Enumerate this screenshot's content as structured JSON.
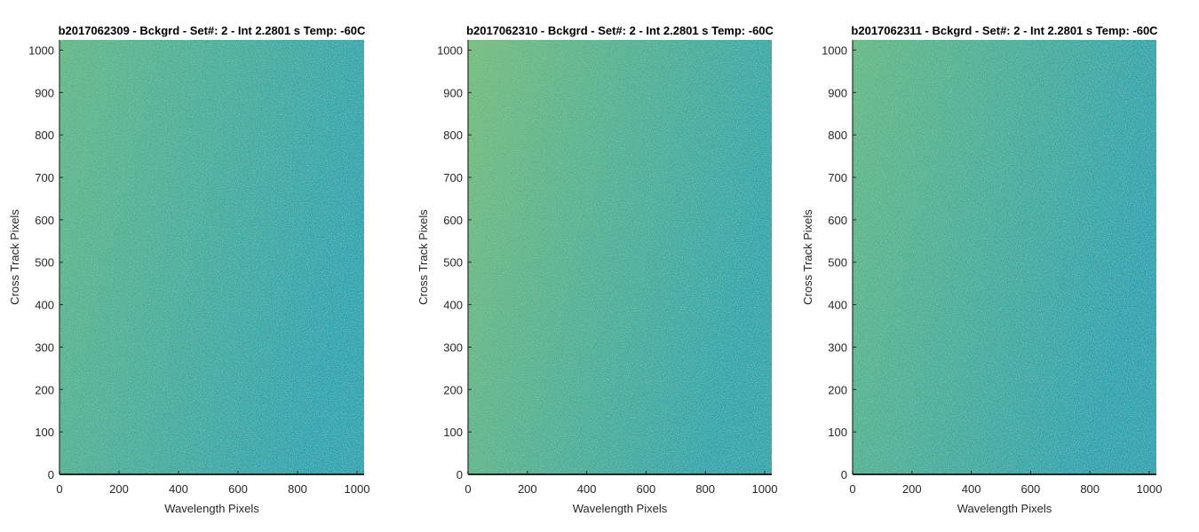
{
  "figure": {
    "background": "#ffffff",
    "colormap": "parula"
  },
  "chart_data": [
    {
      "type": "heatmap",
      "title": "b2017062309 - Bckgrd - Set#: 2 - Int 2.2801 s Temp: -60C",
      "xlabel": "Wavelength Pixels",
      "ylabel": "Cross Track Pixels",
      "xlim": [
        0,
        1024
      ],
      "ylim": [
        0,
        1024
      ],
      "xticks": [
        0,
        200,
        400,
        600,
        800,
        1000
      ],
      "yticks": [
        0,
        100,
        200,
        300,
        400,
        500,
        600,
        700,
        800,
        900,
        1000
      ],
      "grid": false,
      "colorbar": false,
      "gradient": {
        "left": "#5db88d",
        "right": "#1fa4b4",
        "noise": 0.12
      }
    },
    {
      "type": "heatmap",
      "title": "b2017062310 - Bckgrd - Set#: 2 - Int 2.2801 s Temp: -60C",
      "xlabel": "Wavelength Pixels",
      "ylabel": "Cross Track Pixels",
      "xlim": [
        0,
        1024
      ],
      "ylim": [
        0,
        1024
      ],
      "xticks": [
        0,
        200,
        400,
        600,
        800,
        1000
      ],
      "yticks": [
        0,
        100,
        200,
        300,
        400,
        500,
        600,
        700,
        800,
        900,
        1000
      ],
      "grid": false,
      "colorbar": false,
      "gradient": {
        "left": "#70bc82",
        "right": "#23a6b0",
        "noise": 0.12
      }
    },
    {
      "type": "heatmap",
      "title": "b2017062311 - Bckgrd - Set#: 2 - Int 2.2801 s Temp: -60C",
      "xlabel": "Wavelength Pixels",
      "ylabel": "Cross Track Pixels",
      "xlim": [
        0,
        1024
      ],
      "ylim": [
        0,
        1024
      ],
      "xticks": [
        0,
        200,
        400,
        600,
        800,
        1000
      ],
      "yticks": [
        0,
        100,
        200,
        300,
        400,
        500,
        600,
        700,
        800,
        900,
        1000
      ],
      "grid": false,
      "colorbar": false,
      "gradient": {
        "left": "#5fb98b",
        "right": "#1ea3b4",
        "noise": 0.12
      }
    }
  ]
}
